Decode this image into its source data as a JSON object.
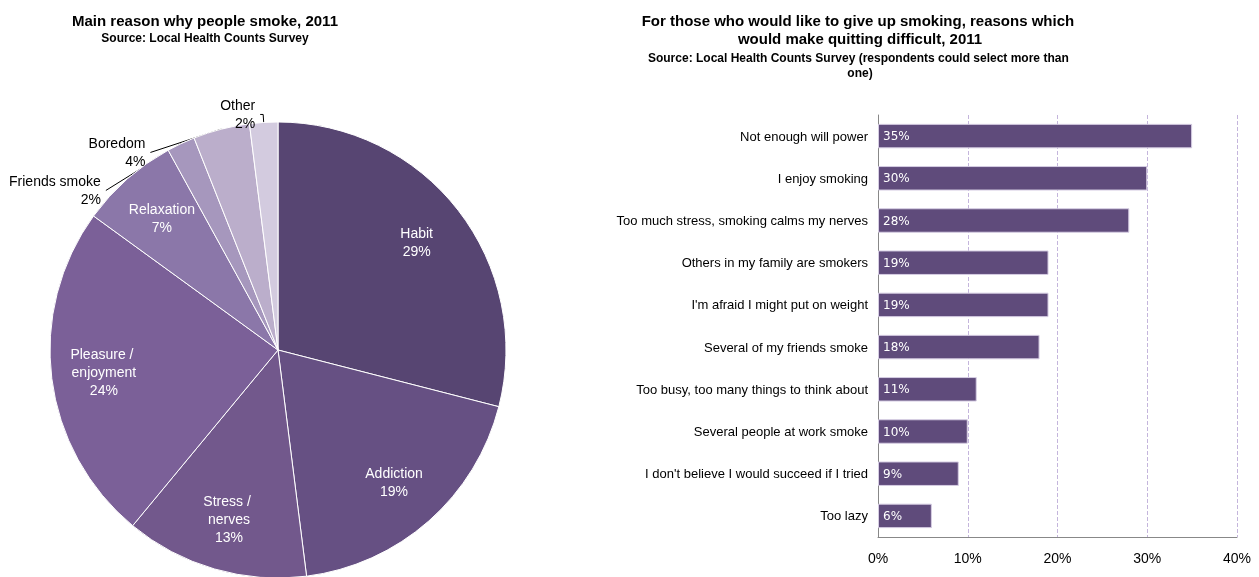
{
  "chart_data": [
    {
      "type": "pie",
      "title": "Main reason why people smoke, 2011",
      "subtitle": "Source: Local Health Counts Survey",
      "categories": [
        "Habit",
        "Addiction",
        "Stress / nerves",
        "Pleasure / enjoyment",
        "Relaxation",
        "Friends smoke",
        "Boredom",
        "Other"
      ],
      "values": [
        29,
        19,
        13,
        24,
        7,
        2,
        4,
        2
      ],
      "value_labels": [
        "29%",
        "19%",
        "13%",
        "24%",
        "7%",
        "2%",
        "4%",
        "2%"
      ],
      "colors": [
        "#574572",
        "#665083",
        "#72588c",
        "#7b6098",
        "#8b77a9",
        "#a697bd",
        "#bbaecb",
        "#d3cbdf"
      ]
    },
    {
      "type": "bar",
      "orientation": "horizontal",
      "title": "For those who would like to give up smoking, reasons which would make quitting difficult, 2011",
      "subtitle": "Source: Local Health Counts Survey (respondents could select more than one)",
      "categories": [
        "Not enough will power",
        "I enjoy smoking",
        "Too much stress, smoking calms my nerves",
        "Others in my family are smokers",
        "I'm afraid I might put on weight",
        "Several of my friends smoke",
        "Too busy, too many things to think about",
        "Several people at work smoke",
        "I don't believe I would succeed if I tried",
        "Too lazy"
      ],
      "values": [
        35,
        30,
        28,
        19,
        19,
        18,
        11,
        10,
        9,
        6
      ],
      "value_labels": [
        "35%",
        "30%",
        "28%",
        "19%",
        "19%",
        "18%",
        "11%",
        "10%",
        "9%",
        "6%"
      ],
      "color": "#5f4b7b",
      "xlim": [
        0,
        40
      ],
      "xticks": [
        {
          "value": 0,
          "label": "0%"
        },
        {
          "value": 10,
          "label": "10%"
        },
        {
          "value": 20,
          "label": "20%"
        },
        {
          "value": 30,
          "label": "30%"
        },
        {
          "value": 40,
          "label": "40%"
        }
      ],
      "grid": "x"
    }
  ]
}
